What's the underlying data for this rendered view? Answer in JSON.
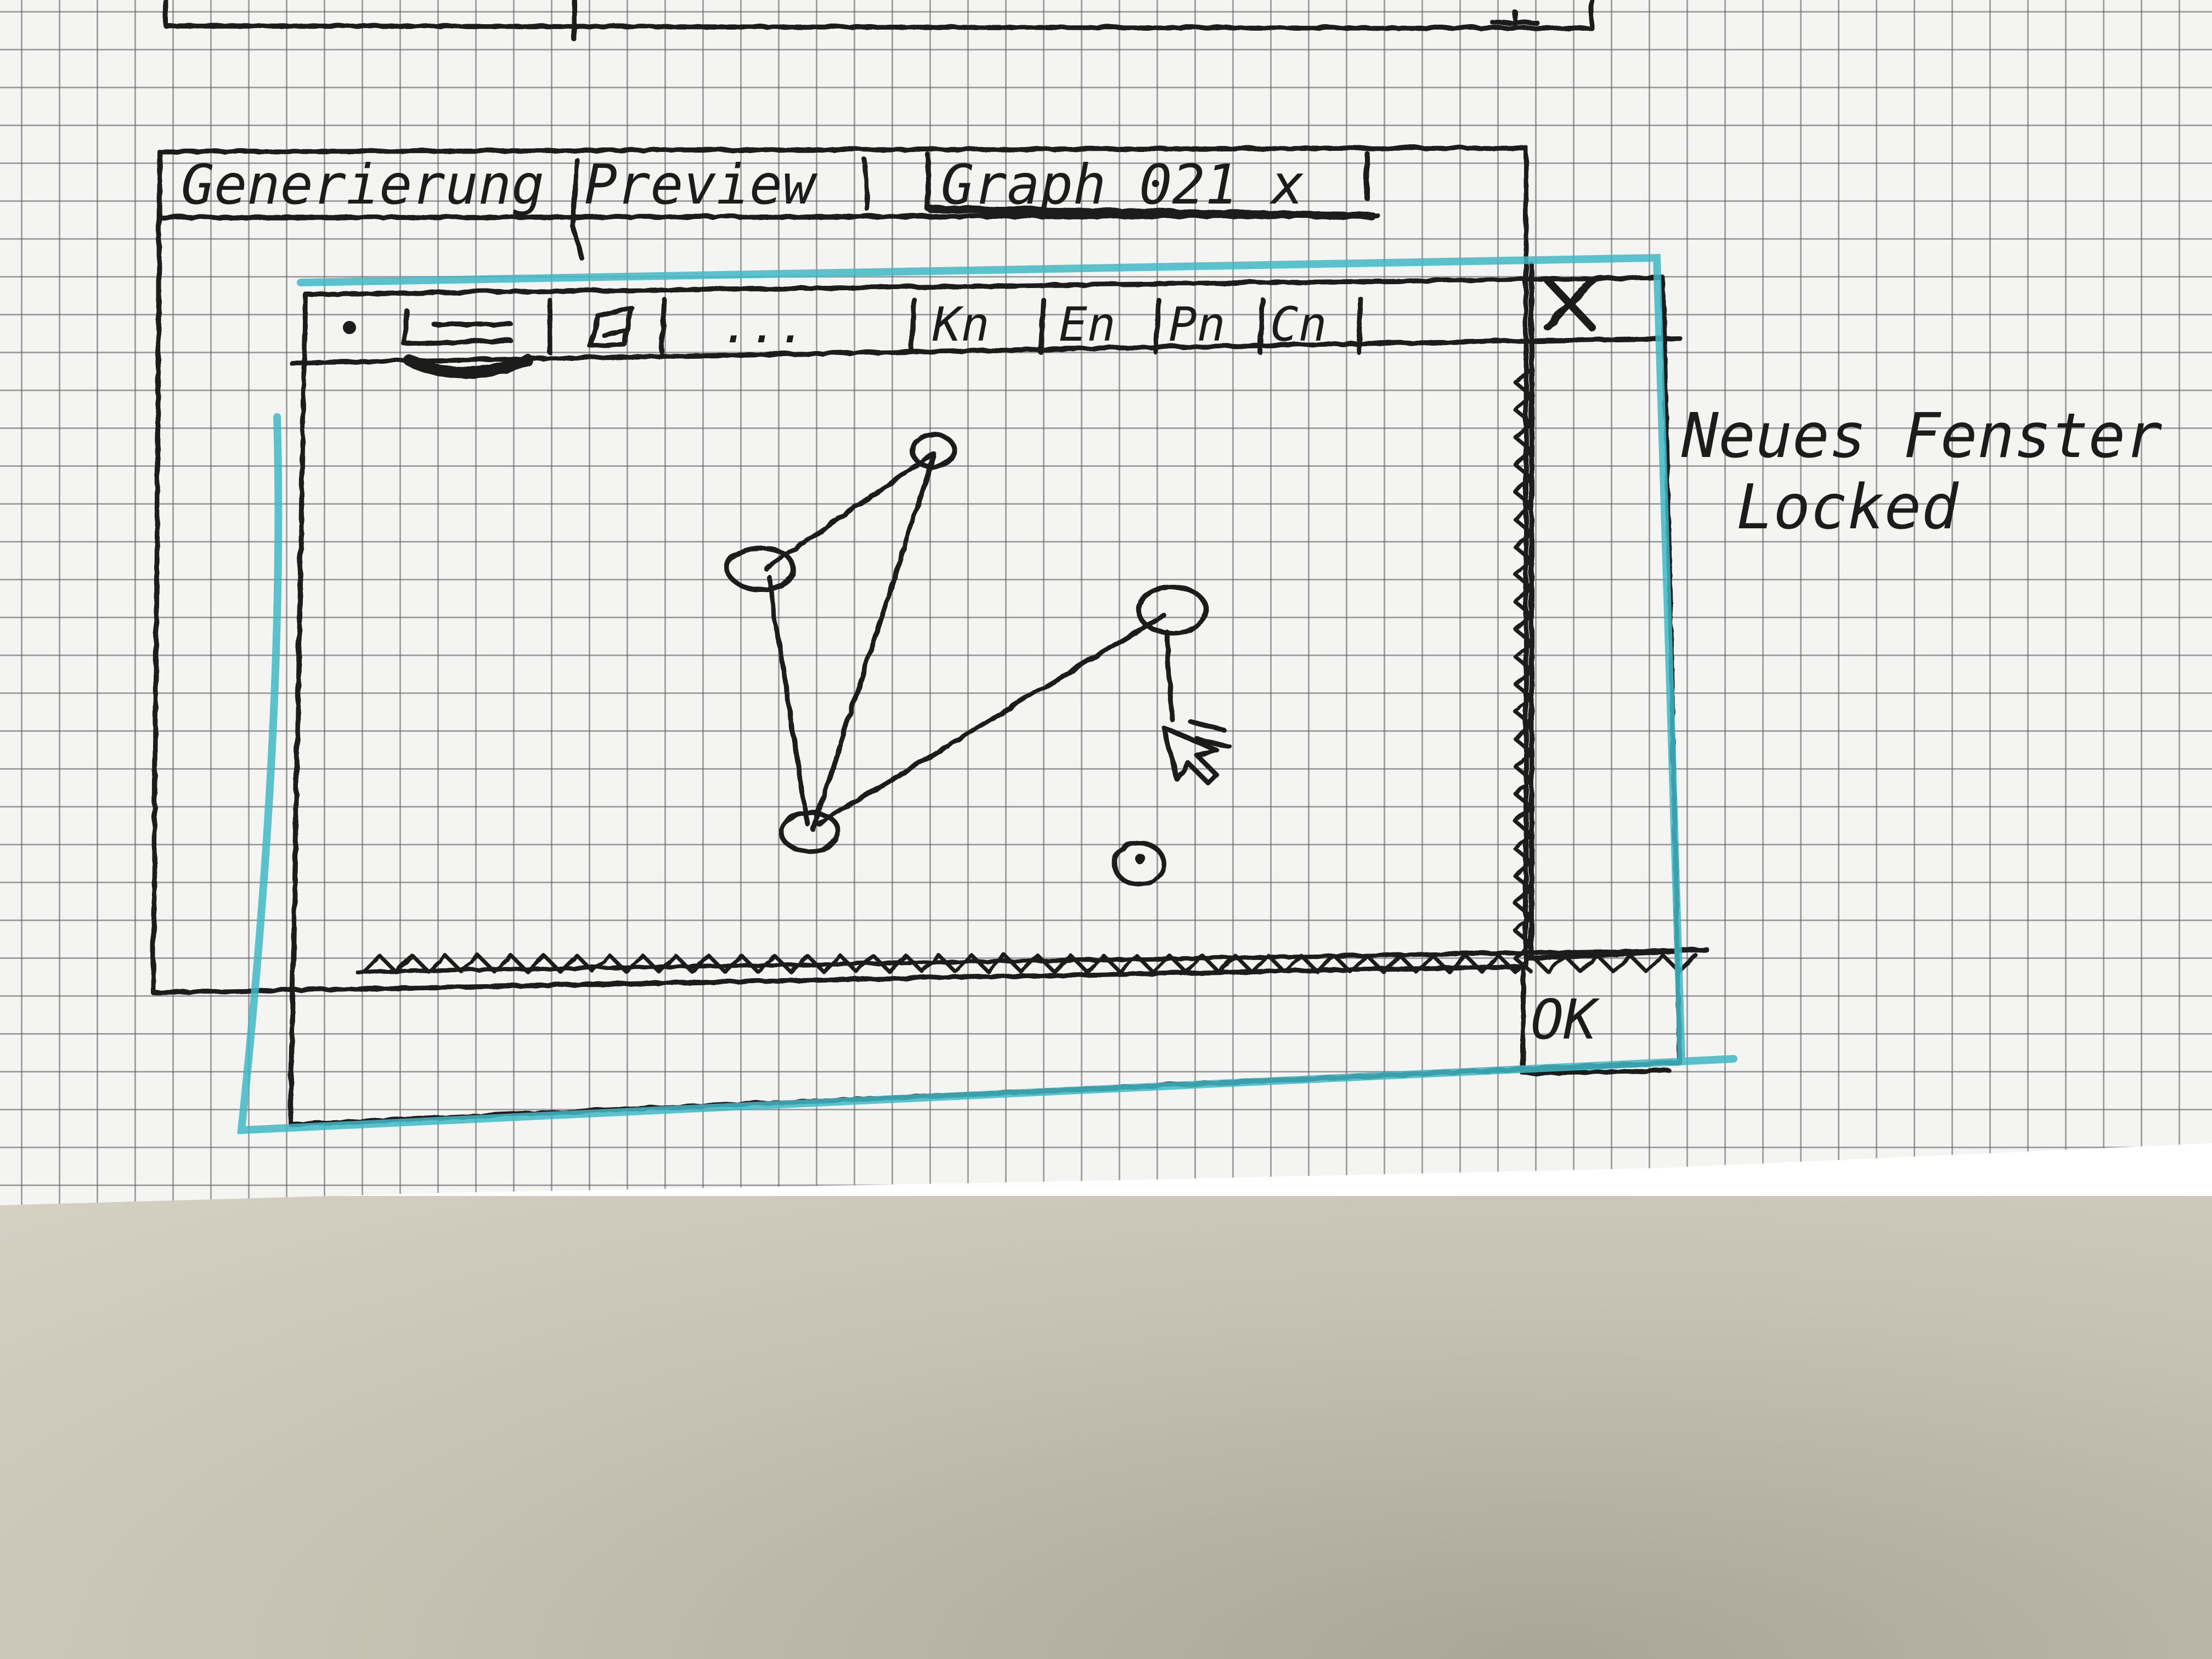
{
  "tabs": [
    {
      "label": "Generierung"
    },
    {
      "label": "Preview"
    },
    {
      "label": "Graph_021 x"
    }
  ],
  "toolbar": {
    "ellipsis": "...",
    "modes": [
      {
        "label": "Kn"
      },
      {
        "label": "En"
      },
      {
        "label": "Pn"
      },
      {
        "label": "Cn"
      }
    ]
  },
  "dialog": {
    "close_glyph": "X",
    "ok_label": "OK"
  },
  "note": {
    "line1": "Neues Fenster",
    "line2": "Locked"
  },
  "colors": {
    "ink": "#1c1c1c",
    "highlight": "#3fb8c6",
    "paper": "#f4f4f2"
  },
  "icons": [
    "dot-icon",
    "line-tool-icon",
    "eraser-icon",
    "close-icon",
    "cursor-icon"
  ]
}
